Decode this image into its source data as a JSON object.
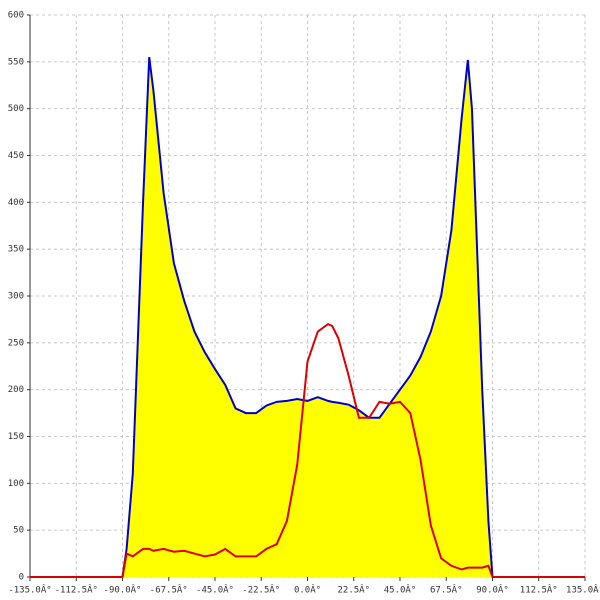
{
  "chart_data": {
    "type": "line",
    "x": [
      -135,
      -90,
      -88,
      -85,
      -80,
      -77,
      -75,
      -70,
      -65,
      -60,
      -55,
      -50,
      -45,
      -40,
      -35,
      -30,
      -25,
      -20,
      -15,
      -10,
      -5,
      0,
      5,
      10,
      12,
      15,
      20,
      25,
      30,
      35,
      40,
      45,
      50,
      55,
      60,
      65,
      70,
      75,
      78,
      80,
      85,
      88,
      90,
      135
    ],
    "series": [
      {
        "color": "#0000cc",
        "fill": "#ffff00",
        "values": [
          0,
          0,
          30,
          110,
          400,
          555,
          520,
          410,
          335,
          295,
          262,
          240,
          222,
          205,
          180,
          175,
          175,
          183,
          187,
          188,
          190,
          188,
          192,
          188,
          187,
          186,
          184,
          178,
          170,
          170,
          185,
          200,
          215,
          235,
          262,
          300,
          370,
          490,
          552,
          500,
          200,
          60,
          0,
          0
        ]
      },
      {
        "color": "#dd0000",
        "values": [
          0,
          0,
          25,
          22,
          30,
          30,
          28,
          30,
          27,
          28,
          25,
          22,
          24,
          30,
          22,
          22,
          22,
          30,
          35,
          60,
          120,
          230,
          262,
          270,
          268,
          255,
          215,
          170,
          170,
          187,
          185,
          187,
          175,
          125,
          55,
          20,
          12,
          8,
          10,
          10,
          10,
          12,
          0,
          0
        ]
      }
    ],
    "xlim": [
      -135,
      135
    ],
    "xticks": [
      {
        "value": -135,
        "label": "-135.0Â°"
      },
      {
        "value": -112.5,
        "label": "-112.5Â°"
      },
      {
        "value": -90,
        "label": "-90.0Â°"
      },
      {
        "value": -67.5,
        "label": "-67.5Â°"
      },
      {
        "value": -45,
        "label": "-45.0Â°"
      },
      {
        "value": -22.5,
        "label": "-22.5Â°"
      },
      {
        "value": 0,
        "label": "0.0Â°"
      },
      {
        "value": 22.5,
        "label": "22.5Â°"
      },
      {
        "value": 45,
        "label": "45.0Â°"
      },
      {
        "value": 67.5,
        "label": "67.5Â°"
      },
      {
        "value": 90,
        "label": "90.0Â°"
      },
      {
        "value": 112.5,
        "label": "112.5Â°"
      },
      {
        "value": 135,
        "label": "135.0Â°"
      }
    ],
    "ylim": [
      0,
      600
    ],
    "yticks": [
      0,
      50,
      100,
      150,
      200,
      250,
      300,
      350,
      400,
      450,
      500,
      550,
      600
    ],
    "grid": true
  }
}
